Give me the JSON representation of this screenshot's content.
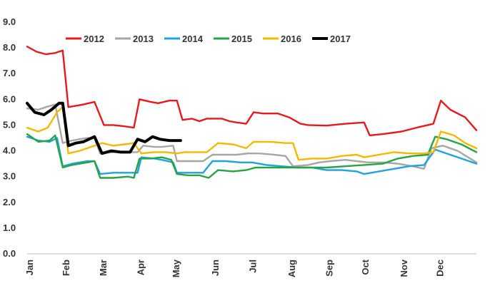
{
  "chart_data": {
    "type": "line",
    "title": "",
    "xlabel": "",
    "ylabel": "",
    "ylim": [
      0,
      9
    ],
    "yticks": [
      "0.0",
      "1.0",
      "2.0",
      "3.0",
      "4.0",
      "5.0",
      "6.0",
      "7.0",
      "8.0",
      "9.0"
    ],
    "months": [
      "Jan",
      "Feb",
      "Mar",
      "Apr",
      "May",
      "Jun",
      "Jul",
      "Aug",
      "Sep",
      "Oct",
      "Nov",
      "Dec"
    ],
    "grid": false,
    "legend_position": "top",
    "series": [
      {
        "name": "2012",
        "color": "#e8191c",
        "points": [
          [
            0,
            8.05
          ],
          [
            0.25,
            7.85
          ],
          [
            0.5,
            7.75
          ],
          [
            0.75,
            7.8
          ],
          [
            0.95,
            7.9
          ],
          [
            1.1,
            5.7
          ],
          [
            1.3,
            5.75
          ],
          [
            1.5,
            5.8
          ],
          [
            1.8,
            5.9
          ],
          [
            2.05,
            5.0
          ],
          [
            2.3,
            5.0
          ],
          [
            2.6,
            4.95
          ],
          [
            2.85,
            4.9
          ],
          [
            3.0,
            6.0
          ],
          [
            3.3,
            5.9
          ],
          [
            3.5,
            5.85
          ],
          [
            3.8,
            5.95
          ],
          [
            4.0,
            5.95
          ],
          [
            4.15,
            5.2
          ],
          [
            4.4,
            5.25
          ],
          [
            4.6,
            5.15
          ],
          [
            4.8,
            5.25
          ],
          [
            5.2,
            5.25
          ],
          [
            5.4,
            5.15
          ],
          [
            5.6,
            5.1
          ],
          [
            5.85,
            5.05
          ],
          [
            6.05,
            5.5
          ],
          [
            6.3,
            5.45
          ],
          [
            6.7,
            5.45
          ],
          [
            7.0,
            5.3
          ],
          [
            7.3,
            5.05
          ],
          [
            7.5,
            5.0
          ],
          [
            8.0,
            4.98
          ],
          [
            8.5,
            5.05
          ],
          [
            9.0,
            5.1
          ],
          [
            9.15,
            4.6
          ],
          [
            9.5,
            4.65
          ],
          [
            10.0,
            4.75
          ],
          [
            10.4,
            4.9
          ],
          [
            10.7,
            5.0
          ],
          [
            10.85,
            5.05
          ],
          [
            11.05,
            5.95
          ],
          [
            11.3,
            5.6
          ],
          [
            11.7,
            5.3
          ],
          [
            12.0,
            4.8
          ]
        ]
      },
      {
        "name": "2013",
        "color": "#a6a6a6",
        "points": [
          [
            0,
            5.65
          ],
          [
            0.3,
            5.6
          ],
          [
            0.5,
            5.7
          ],
          [
            0.75,
            5.8
          ],
          [
            0.95,
            4.3
          ],
          [
            1.2,
            4.4
          ],
          [
            1.6,
            4.5
          ],
          [
            1.8,
            4.5
          ],
          [
            1.95,
            3.9
          ],
          [
            2.3,
            3.95
          ],
          [
            2.7,
            3.95
          ],
          [
            2.95,
            3.95
          ],
          [
            3.1,
            4.2
          ],
          [
            3.4,
            4.15
          ],
          [
            3.6,
            4.15
          ],
          [
            3.9,
            4.2
          ],
          [
            4.0,
            3.6
          ],
          [
            4.3,
            3.6
          ],
          [
            4.7,
            3.6
          ],
          [
            4.95,
            3.85
          ],
          [
            5.3,
            3.85
          ],
          [
            5.6,
            3.85
          ],
          [
            5.9,
            3.9
          ],
          [
            6.2,
            3.9
          ],
          [
            6.6,
            3.85
          ],
          [
            6.9,
            3.8
          ],
          [
            7.1,
            3.4
          ],
          [
            7.5,
            3.45
          ],
          [
            7.8,
            3.55
          ],
          [
            8.1,
            3.6
          ],
          [
            8.5,
            3.65
          ],
          [
            8.8,
            3.6
          ],
          [
            9.1,
            3.55
          ],
          [
            9.5,
            3.55
          ],
          [
            9.9,
            3.5
          ],
          [
            10.3,
            3.4
          ],
          [
            10.6,
            3.3
          ],
          [
            10.8,
            4.1
          ],
          [
            11.1,
            4.2
          ],
          [
            11.5,
            4.0
          ],
          [
            12.0,
            3.55
          ]
        ]
      },
      {
        "name": "2014",
        "color": "#1fa3e0",
        "points": [
          [
            0,
            4.55
          ],
          [
            0.3,
            4.4
          ],
          [
            0.6,
            4.35
          ],
          [
            0.8,
            4.5
          ],
          [
            0.95,
            3.4
          ],
          [
            1.2,
            3.5
          ],
          [
            1.6,
            3.6
          ],
          [
            1.8,
            3.6
          ],
          [
            1.95,
            3.1
          ],
          [
            2.3,
            3.15
          ],
          [
            2.7,
            3.15
          ],
          [
            2.95,
            3.15
          ],
          [
            3.05,
            3.75
          ],
          [
            3.4,
            3.7
          ],
          [
            3.6,
            3.65
          ],
          [
            3.9,
            3.55
          ],
          [
            4.0,
            3.15
          ],
          [
            4.3,
            3.15
          ],
          [
            4.7,
            3.15
          ],
          [
            4.95,
            3.6
          ],
          [
            5.3,
            3.6
          ],
          [
            5.7,
            3.55
          ],
          [
            6.0,
            3.55
          ],
          [
            6.4,
            3.45
          ],
          [
            6.8,
            3.4
          ],
          [
            7.2,
            3.35
          ],
          [
            7.6,
            3.35
          ],
          [
            8.0,
            3.25
          ],
          [
            8.4,
            3.25
          ],
          [
            8.8,
            3.2
          ],
          [
            9.0,
            3.1
          ],
          [
            9.4,
            3.2
          ],
          [
            9.8,
            3.3
          ],
          [
            10.2,
            3.4
          ],
          [
            10.6,
            3.45
          ],
          [
            10.9,
            4.05
          ],
          [
            11.2,
            3.9
          ],
          [
            11.6,
            3.7
          ],
          [
            12.0,
            3.5
          ]
        ]
      },
      {
        "name": "2015",
        "color": "#27a345",
        "points": [
          [
            0,
            4.65
          ],
          [
            0.3,
            4.35
          ],
          [
            0.6,
            4.4
          ],
          [
            0.75,
            4.6
          ],
          [
            0.95,
            3.35
          ],
          [
            1.2,
            3.45
          ],
          [
            1.6,
            3.55
          ],
          [
            1.8,
            3.6
          ],
          [
            1.95,
            2.95
          ],
          [
            2.3,
            2.95
          ],
          [
            2.7,
            3.0
          ],
          [
            2.85,
            2.95
          ],
          [
            3.0,
            3.7
          ],
          [
            3.3,
            3.7
          ],
          [
            3.6,
            3.75
          ],
          [
            3.85,
            3.65
          ],
          [
            4.0,
            3.1
          ],
          [
            4.3,
            3.05
          ],
          [
            4.6,
            3.05
          ],
          [
            4.85,
            2.95
          ],
          [
            5.1,
            3.25
          ],
          [
            5.5,
            3.2
          ],
          [
            5.85,
            3.25
          ],
          [
            6.1,
            3.35
          ],
          [
            6.5,
            3.35
          ],
          [
            7.0,
            3.35
          ],
          [
            7.5,
            3.35
          ],
          [
            8.0,
            3.35
          ],
          [
            8.5,
            3.4
          ],
          [
            9.0,
            3.45
          ],
          [
            9.5,
            3.5
          ],
          [
            9.9,
            3.7
          ],
          [
            10.3,
            3.8
          ],
          [
            10.7,
            3.85
          ],
          [
            10.9,
            4.55
          ],
          [
            11.2,
            4.45
          ],
          [
            11.6,
            4.25
          ],
          [
            12.0,
            3.95
          ]
        ]
      },
      {
        "name": "2016",
        "color": "#f5b800",
        "points": [
          [
            0,
            4.9
          ],
          [
            0.3,
            4.75
          ],
          [
            0.55,
            4.9
          ],
          [
            0.8,
            5.5
          ],
          [
            0.95,
            5.7
          ],
          [
            1.1,
            3.9
          ],
          [
            1.4,
            4.0
          ],
          [
            1.7,
            4.15
          ],
          [
            2.0,
            4.3
          ],
          [
            2.3,
            4.2
          ],
          [
            2.6,
            4.25
          ],
          [
            2.85,
            4.3
          ],
          [
            3.05,
            3.9
          ],
          [
            3.4,
            3.95
          ],
          [
            3.7,
            3.95
          ],
          [
            4.0,
            3.9
          ],
          [
            4.2,
            3.95
          ],
          [
            4.5,
            3.95
          ],
          [
            4.8,
            3.95
          ],
          [
            5.1,
            4.3
          ],
          [
            5.5,
            4.25
          ],
          [
            5.85,
            4.1
          ],
          [
            6.05,
            4.35
          ],
          [
            6.5,
            4.35
          ],
          [
            6.9,
            4.3
          ],
          [
            7.1,
            4.3
          ],
          [
            7.25,
            3.65
          ],
          [
            7.6,
            3.7
          ],
          [
            8.0,
            3.7
          ],
          [
            8.4,
            3.8
          ],
          [
            8.8,
            3.85
          ],
          [
            9.0,
            3.75
          ],
          [
            9.4,
            3.85
          ],
          [
            9.8,
            3.95
          ],
          [
            10.2,
            3.9
          ],
          [
            10.6,
            3.9
          ],
          [
            10.85,
            3.95
          ],
          [
            11.05,
            4.75
          ],
          [
            11.4,
            4.6
          ],
          [
            11.7,
            4.3
          ],
          [
            12.0,
            4.1
          ]
        ]
      },
      {
        "name": "2017",
        "color": "#000000",
        "points": [
          [
            0,
            5.85
          ],
          [
            0.2,
            5.5
          ],
          [
            0.45,
            5.4
          ],
          [
            0.65,
            5.6
          ],
          [
            0.85,
            5.85
          ],
          [
            0.95,
            5.85
          ],
          [
            1.1,
            4.2
          ],
          [
            1.3,
            4.3
          ],
          [
            1.5,
            4.35
          ],
          [
            1.8,
            4.55
          ],
          [
            2.0,
            3.9
          ],
          [
            2.25,
            4.0
          ],
          [
            2.5,
            3.95
          ],
          [
            2.75,
            3.95
          ],
          [
            2.95,
            4.45
          ],
          [
            3.15,
            4.35
          ],
          [
            3.35,
            4.55
          ],
          [
            3.55,
            4.45
          ],
          [
            3.8,
            4.4
          ],
          [
            4.1,
            4.4
          ]
        ]
      }
    ]
  }
}
